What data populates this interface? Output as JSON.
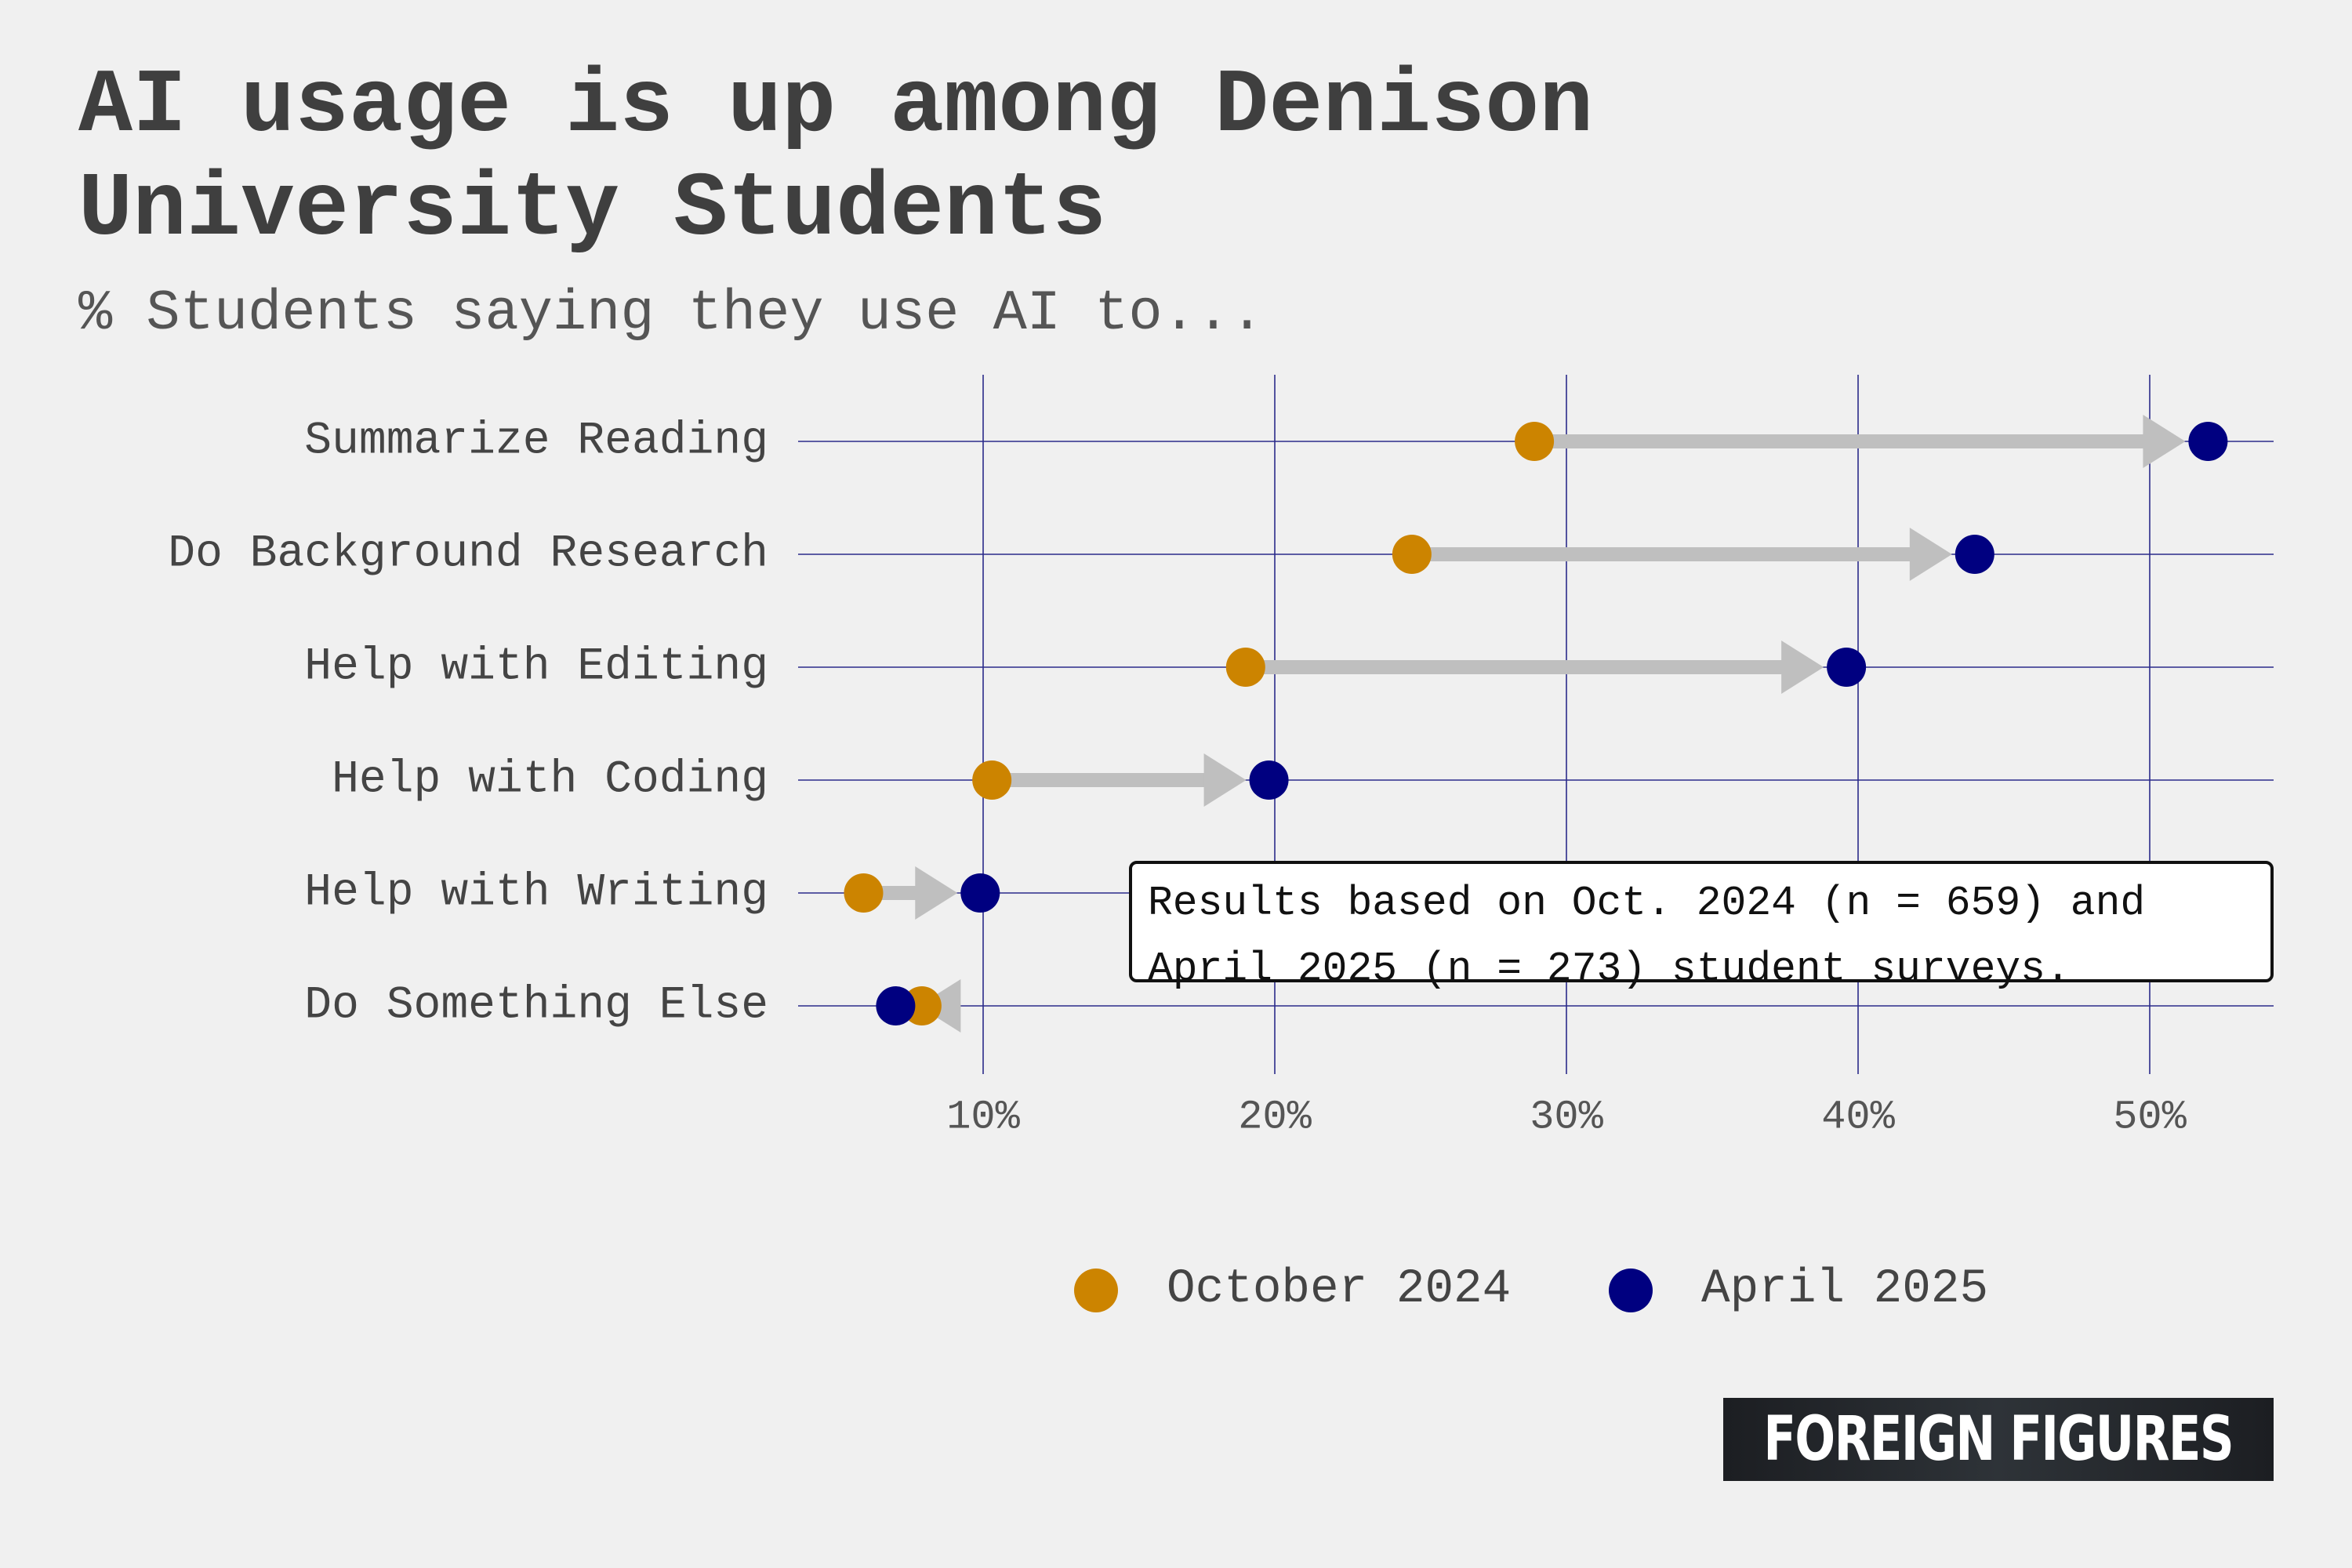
{
  "header": {
    "title": "AI usage is up among Denison University Students",
    "subtitle": "% Students saying they use AI to..."
  },
  "note": {
    "line1": "Results based on Oct. 2024 (n = 659) and",
    "line2": "April 2025 (n = 273) student surveys."
  },
  "legend": {
    "items": [
      {
        "label": "October 2024",
        "color": "#cc8400"
      },
      {
        "label": "April 2025",
        "color": "#000080"
      }
    ]
  },
  "brand": {
    "text": "FOREIGN FIGURES"
  },
  "colors": {
    "background": "#f0f0f0",
    "grid": "#2b2b8a",
    "arrow": "#bfbfbf",
    "october": "#cc8400",
    "april": "#000080"
  },
  "chart_data": {
    "type": "dumbbell-arrow",
    "title": "AI usage is up among Denison University Students",
    "subtitle": "% Students saying they use AI to...",
    "xlabel": "",
    "ylabel": "",
    "x_unit": "%",
    "xlim": [
      3.6,
      54.3
    ],
    "x_ticks": [
      10,
      20,
      30,
      40,
      50
    ],
    "x_tick_labels": [
      "10%",
      "20%",
      "30%",
      "40%",
      "50%"
    ],
    "grid": true,
    "legend_position": "bottom",
    "categories": [
      "Summarize Reading",
      "Do Background Research",
      "Help with Editing",
      "Help with Coding",
      "Help with Writing",
      "Do Something Else"
    ],
    "series": [
      {
        "name": "October 2024",
        "color": "#cc8400",
        "values": [
          28.9,
          24.7,
          19.0,
          10.3,
          5.9,
          7.9
        ]
      },
      {
        "name": "April 2025",
        "color": "#000080",
        "values": [
          52.0,
          44.0,
          39.6,
          19.8,
          9.9,
          7.0
        ]
      }
    ]
  }
}
